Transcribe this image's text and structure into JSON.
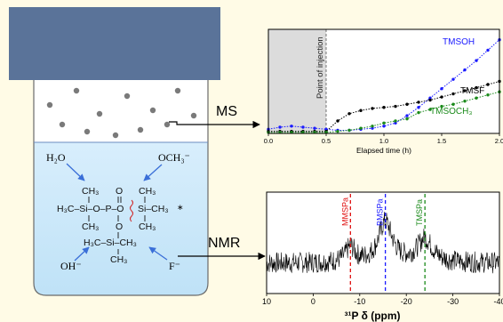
{
  "vessel": {
    "gas_particles": 12,
    "reagents": {
      "water": "H₂O",
      "methoxide": "OCH₃⁻",
      "hydroxide": "OH⁻",
      "fluoride": "F⁻"
    },
    "molecule": {
      "methyl": "CH₃",
      "top_left_group": "H₃C–Si–O–P–O",
      "right_group": "Si–CH₃",
      "lower_group": "H₃C–Si–CH₃",
      "oxygen": "O",
      "dagger": "∗"
    }
  },
  "arrows": {
    "ms_label": "MS",
    "nmr_label": "NMR"
  },
  "chart_data": [
    {
      "type": "line",
      "title": "",
      "xlabel": "Elapsed time (h)",
      "ylabel": "",
      "xlim": [
        0,
        2.0
      ],
      "x_ticks": [
        "0.0",
        "0.5",
        "1.0",
        "1.5",
        "2.0"
      ],
      "annotation": {
        "text": "Point of injection",
        "x": 0.5,
        "shaded_range": [
          0,
          0.5
        ]
      },
      "series": [
        {
          "name": "TMSOH",
          "color": "#1a1aff",
          "x": [
            0.0,
            0.1,
            0.2,
            0.3,
            0.4,
            0.5,
            0.6,
            0.7,
            0.8,
            0.9,
            1.0,
            1.1,
            1.2,
            1.3,
            1.4,
            1.5,
            1.6,
            1.7,
            1.8,
            1.9,
            2.0
          ],
          "y": [
            0.04,
            0.06,
            0.07,
            0.06,
            0.05,
            0.04,
            0.03,
            0.03,
            0.04,
            0.05,
            0.07,
            0.1,
            0.17,
            0.25,
            0.34,
            0.43,
            0.52,
            0.61,
            0.7,
            0.8,
            0.9
          ]
        },
        {
          "name": "TMSF",
          "color": "#000000",
          "x": [
            0.0,
            0.1,
            0.2,
            0.3,
            0.4,
            0.5,
            0.6,
            0.7,
            0.8,
            0.9,
            1.0,
            1.1,
            1.2,
            1.3,
            1.4,
            1.5,
            1.6,
            1.7,
            1.8,
            1.9,
            2.0
          ],
          "y": [
            0.02,
            0.02,
            0.02,
            0.02,
            0.02,
            0.02,
            0.12,
            0.19,
            0.22,
            0.24,
            0.25,
            0.26,
            0.28,
            0.3,
            0.32,
            0.35,
            0.38,
            0.41,
            0.44,
            0.47,
            0.5
          ]
        },
        {
          "name": "TMSOCH₃",
          "color": "#1a8a1a",
          "x": [
            0.0,
            0.1,
            0.2,
            0.3,
            0.4,
            0.5,
            0.6,
            0.7,
            0.8,
            0.9,
            1.0,
            1.1,
            1.2,
            1.3,
            1.4,
            1.5,
            1.6,
            1.7,
            1.8,
            1.9,
            2.0
          ],
          "y": [
            0.01,
            0.01,
            0.01,
            0.01,
            0.01,
            0.01,
            0.02,
            0.03,
            0.05,
            0.07,
            0.1,
            0.12,
            0.14,
            0.2,
            0.23,
            0.26,
            0.28,
            0.31,
            0.34,
            0.37,
            0.4
          ]
        }
      ]
    },
    {
      "type": "line",
      "title": "",
      "xlabel": "³¹P δ (ppm)",
      "ylabel": "",
      "xlim": [
        10,
        -40
      ],
      "x_ticks": [
        "10",
        "0",
        "-10",
        "-20",
        "-30",
        "-40"
      ],
      "peaks": [
        {
          "name": "MMSPa",
          "x": -8,
          "color": "#e01010",
          "height": 0.35
        },
        {
          "name": "BMSPa",
          "x": -15.5,
          "color": "#1a1aff",
          "height": 0.95
        },
        {
          "name": "TMSPa",
          "x": -24,
          "color": "#1a8a1a",
          "height": 0.55
        }
      ],
      "series": [
        {
          "name": "",
          "color": "#000000",
          "note": "noisy spectrum"
        }
      ]
    }
  ]
}
